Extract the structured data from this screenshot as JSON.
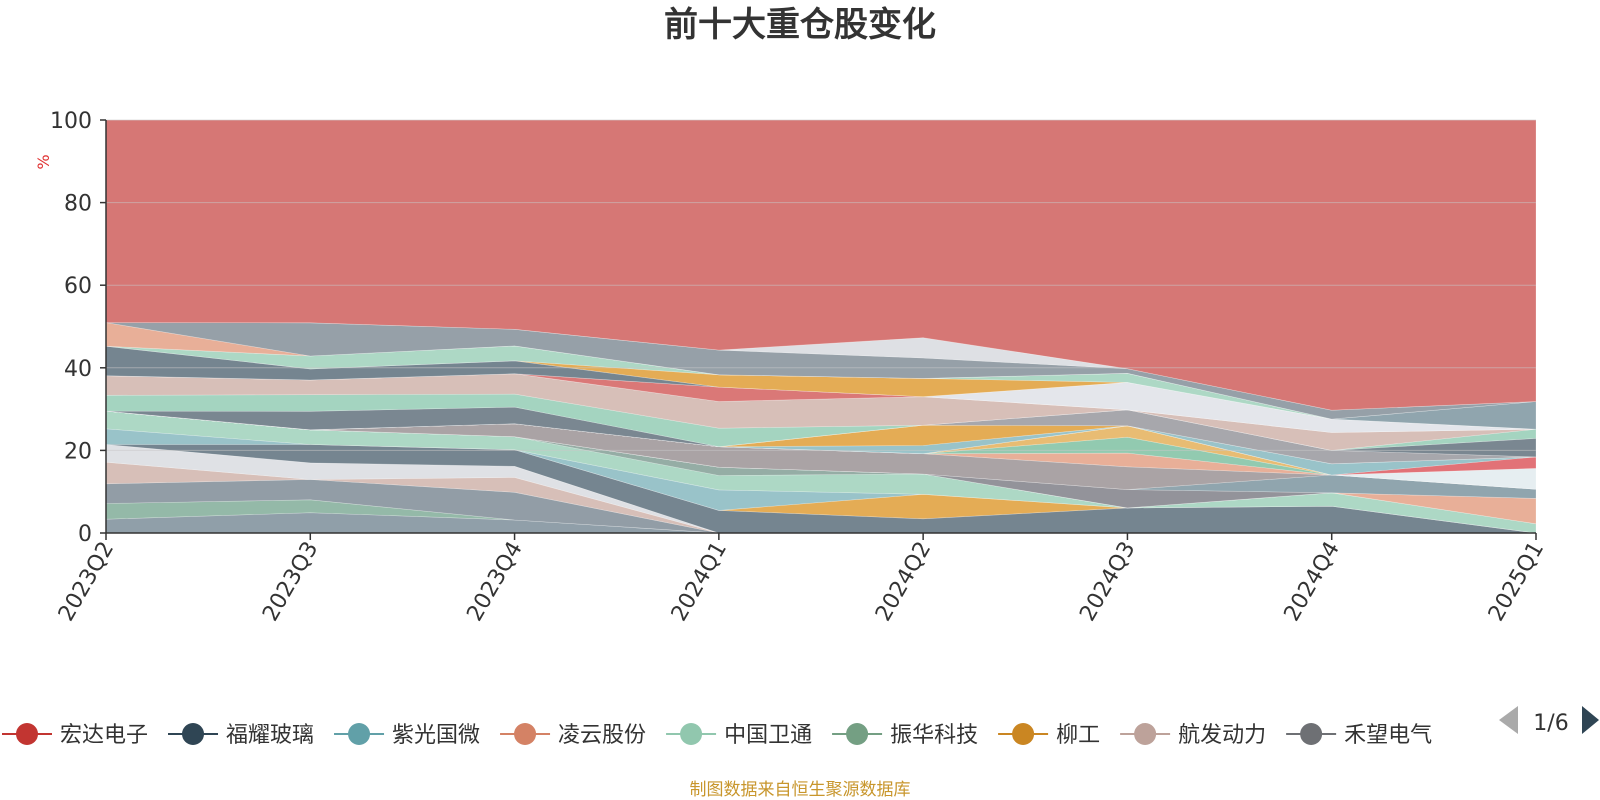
{
  "chart_data": {
    "type": "area",
    "stacking": "percent",
    "title": "前十大重仓股变化",
    "ylabel": "%",
    "ylim": [
      0,
      100
    ],
    "y_ticks": [
      "0",
      "20",
      "40",
      "60",
      "80",
      "100"
    ],
    "x": [
      "2023Q2",
      "2023Q3",
      "2023Q4",
      "2024Q1",
      "2024Q2",
      "2024Q3",
      "2024Q4",
      "2025Q1"
    ],
    "grid": true,
    "legend_position": "bottom",
    "legend_visible": [
      "宏达电子",
      "福耀玻璃",
      "紫光国微",
      "凌云股份",
      "中国卫通",
      "振华科技",
      "柳工",
      "航发动力",
      "禾望电气"
    ],
    "legend_page": "1/6",
    "series": [
      {
        "name": "",
        "color": "#8a9aa4",
        "values": [
          3.5,
          5.5,
          3.5,
          0,
          0,
          0,
          0,
          0
        ]
      },
      {
        "name": "",
        "color": "#8eb5a3",
        "values": [
          4.0,
          3.5,
          0,
          0,
          0,
          0,
          0,
          0
        ]
      },
      {
        "name": "",
        "color": "#8c98a1",
        "values": [
          5.0,
          5.5,
          7.5,
          0,
          0,
          0,
          0,
          0
        ]
      },
      {
        "name": "",
        "color": "#d5bcb4",
        "values": [
          5.5,
          0,
          4.0,
          0,
          0,
          0,
          0,
          0
        ]
      },
      {
        "name": "",
        "color": "#dddfe4",
        "values": [
          4.5,
          4.5,
          3.0,
          0,
          0,
          0,
          0,
          0
        ]
      },
      {
        "name": "",
        "color": "#6e7e8a",
        "values": [
          0,
          5.0,
          4.5,
          5.5,
          3.5,
          5.5,
          6.0,
          0
        ]
      },
      {
        "name": "",
        "color": "#e3a84c",
        "values": [
          0,
          0,
          0,
          0,
          6.0,
          0,
          0,
          0
        ]
      },
      {
        "name": "",
        "color": "#93c0c6",
        "values": [
          4.0,
          0,
          0,
          5.0,
          0,
          0,
          0,
          0
        ]
      },
      {
        "name": "",
        "color": "#a9d6c2",
        "values": [
          4.5,
          4.0,
          3.5,
          3.5,
          5.0,
          0,
          3.0,
          2.0
        ]
      },
      {
        "name": "",
        "color": "#8fa9a0",
        "values": [
          0,
          0,
          0,
          2.0,
          0,
          0,
          0,
          0
        ]
      },
      {
        "name": "",
        "color": "#e7ab92",
        "values": [
          0,
          0,
          0,
          0,
          0,
          0,
          0,
          5.5
        ]
      },
      {
        "name": "",
        "color": "#8d8d95",
        "values": [
          0,
          0,
          0,
          0,
          0,
          4.0,
          0,
          0
        ]
      },
      {
        "name": "",
        "color": "#8aa0aa",
        "values": [
          0,
          0,
          0,
          0,
          0,
          0,
          4.0,
          2.0
        ]
      },
      {
        "name": "",
        "color": "#a59ea0",
        "values": [
          0,
          0,
          3.5,
          5.0,
          5.0,
          5.0,
          0,
          0
        ]
      },
      {
        "name": "",
        "color": "#e7ab92",
        "values": [
          0,
          0,
          0,
          0,
          0,
          3.0,
          0,
          0
        ]
      },
      {
        "name": "",
        "color": "#8cc7ac",
        "values": [
          0,
          0,
          0,
          0,
          0,
          3.5,
          0,
          0
        ]
      },
      {
        "name": "",
        "color": "#e7b86b",
        "values": [
          0,
          0,
          0,
          0,
          0,
          2.5,
          0,
          0
        ]
      },
      {
        "name": "",
        "color": "#e5edf0",
        "values": [
          0,
          0,
          0,
          0,
          0,
          0,
          0,
          4.5
        ]
      },
      {
        "name": "",
        "color": "#e06a70",
        "values": [
          0,
          0,
          0,
          0,
          0,
          0,
          0,
          2.5
        ]
      },
      {
        "name": "",
        "color": "#93c0c6",
        "values": [
          0,
          0,
          0,
          0,
          2.0,
          0,
          2.5,
          0
        ]
      },
      {
        "name": "",
        "color": "#e3a84c",
        "values": [
          0,
          0,
          0,
          0,
          5.0,
          0,
          0,
          0
        ]
      },
      {
        "name": "",
        "color": "#a2a2a8",
        "values": [
          0,
          0,
          0,
          0,
          0,
          3.5,
          3.0,
          0
        ]
      },
      {
        "name": "",
        "color": "#73818b",
        "values": [
          0,
          5.0,
          4.5,
          0,
          0,
          0,
          0,
          4.0
        ]
      },
      {
        "name": "",
        "color": "#9fd2bd",
        "values": [
          4.0,
          4.5,
          3.5,
          4.5,
          0,
          0,
          0,
          2.0
        ]
      },
      {
        "name": "",
        "color": "#d5bcb4",
        "values": [
          5.0,
          4.0,
          5.5,
          6.5,
          7.0,
          0,
          4.0,
          0
        ]
      },
      {
        "name": "",
        "color": "#e3a84c",
        "values": [
          0,
          0,
          0,
          0,
          0,
          0,
          0,
          0
        ]
      },
      {
        "name": "",
        "color": "#d87170",
        "values": [
          0,
          0,
          0,
          3.5,
          0,
          0,
          0,
          0
        ]
      },
      {
        "name": "",
        "color": "#e3e5ea",
        "values": [
          0,
          0,
          0,
          0,
          0,
          6.0,
          3.0,
          0
        ]
      },
      {
        "name": "",
        "color": "#6e7e8a",
        "values": [
          7.5,
          3.0,
          3.5,
          0,
          0,
          0,
          0,
          0
        ]
      },
      {
        "name": "",
        "color": "#e3a84c",
        "values": [
          0,
          0,
          0,
          3.0,
          4.5,
          0,
          0,
          0
        ]
      },
      {
        "name": "",
        "color": "#a9d6c2",
        "values": [
          0,
          3.5,
          4.0,
          0,
          0,
          2.0,
          0,
          0
        ]
      },
      {
        "name": "",
        "color": "#8aa0aa",
        "values": [
          0,
          0,
          0,
          0,
          0,
          0,
          0,
          6.0
        ]
      },
      {
        "name": "",
        "color": "#e7ab92",
        "values": [
          6.0,
          0,
          0,
          0,
          0,
          0,
          0,
          0
        ]
      },
      {
        "name": "",
        "color": "#909ba3",
        "values": [
          0,
          9.0,
          4.5,
          6.0,
          5.0,
          1.0,
          2.0,
          0
        ]
      },
      {
        "name": "",
        "color": "#dcdee3",
        "values": [
          0,
          0,
          0,
          0,
          5.0,
          0,
          0,
          0
        ]
      },
      {
        "name": "",
        "color": "#d4706e",
        "values": [
          51.5,
          55.0,
          56.5,
          56.0,
          53.5,
          54.5,
          65.0,
          61.0
        ]
      }
    ]
  },
  "legend": {
    "items": [
      {
        "label": "宏达电子",
        "color": "#c23531"
      },
      {
        "label": "福耀玻璃",
        "color": "#2f4554"
      },
      {
        "label": "紫光国微",
        "color": "#61a0a8"
      },
      {
        "label": "凌云股份",
        "color": "#d48265"
      },
      {
        "label": "中国卫通",
        "color": "#91c7ae"
      },
      {
        "label": "振华科技",
        "color": "#749f83"
      },
      {
        "label": "柳工",
        "color": "#ca8622"
      },
      {
        "label": "航发动力",
        "color": "#bda29a"
      },
      {
        "label": "禾望电气",
        "color": "#6e7074"
      }
    ],
    "page": "1/6"
  },
  "footer": {
    "source": "制图数据来自恒生聚源数据库",
    "source_color": "#c8962c"
  },
  "colors": {
    "axis": "#333333",
    "grid": "#c8c8c8",
    "unit_label": "#e03030",
    "pager_disabled": "#aaaaaa",
    "pager_active": "#2f4554"
  }
}
